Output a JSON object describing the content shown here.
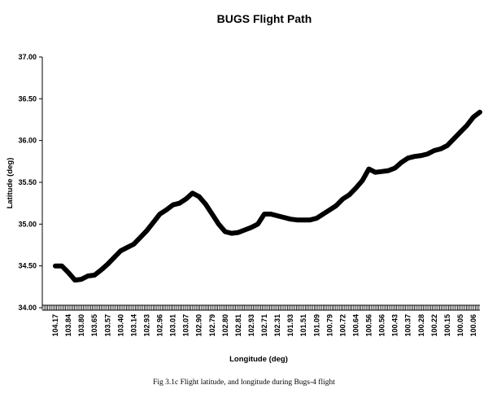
{
  "chart_data": {
    "type": "line",
    "title": "BUGS Flight Path",
    "xlabel": "Longitude (deg)",
    "ylabel": "Latitude (deg)",
    "ylim": [
      34.0,
      37.0
    ],
    "yticks": [
      "34.00",
      "34.50",
      "35.00",
      "35.50",
      "36.00",
      "36.50",
      "37.00"
    ],
    "categories": [
      "104.17",
      "103.84",
      "103.80",
      "103.65",
      "103.57",
      "103.40",
      "103.14",
      "102.93",
      "102.96",
      "103.01",
      "103.07",
      "102.90",
      "102.79",
      "102.80",
      "102.81",
      "102.93",
      "102.71",
      "102.31",
      "101.93",
      "101.51",
      "101.09",
      "100.79",
      "100.72",
      "100.64",
      "100.56",
      "100.56",
      "100.43",
      "100.37",
      "100.28",
      "100.22",
      "100.15",
      "100.05",
      "100.06"
    ],
    "series": [
      {
        "x": [
          0,
          0.5,
          1,
          1.5,
          2,
          2.5,
          3,
          3.5,
          4,
          4.5,
          5,
          5.5,
          6,
          6.5,
          7,
          7.5,
          8,
          8.5,
          9,
          9.5,
          10,
          10.5,
          11,
          11.5,
          12,
          12.5,
          13,
          13.5,
          14,
          14.5,
          15,
          15.5,
          16,
          16.5,
          17,
          17.5,
          18,
          18.5,
          19,
          19.5,
          20,
          20.5,
          21,
          21.5,
          22,
          22.5,
          23,
          23.5,
          24,
          24.5,
          25,
          25.5,
          26,
          26.5,
          27,
          27.5,
          28,
          28.5,
          29,
          29.5,
          30,
          30.5,
          31,
          31.5,
          32,
          32.5
        ],
        "values": [
          34.5,
          34.5,
          34.42,
          34.33,
          34.34,
          34.38,
          34.39,
          34.45,
          34.52,
          34.6,
          34.68,
          34.72,
          34.76,
          34.84,
          34.92,
          35.02,
          35.12,
          35.17,
          35.23,
          35.25,
          35.3,
          35.37,
          35.33,
          35.24,
          35.12,
          35.0,
          34.91,
          34.89,
          34.9,
          34.93,
          34.96,
          35.0,
          35.12,
          35.12,
          35.1,
          35.08,
          35.06,
          35.05,
          35.05,
          35.05,
          35.07,
          35.12,
          35.17,
          35.22,
          35.3,
          35.35,
          35.43,
          35.52,
          35.66,
          35.62,
          35.63,
          35.64,
          35.67,
          35.74,
          35.79,
          35.81,
          35.82,
          35.84,
          35.88,
          35.9,
          35.94,
          36.02,
          36.1,
          36.18,
          36.28,
          36.34
        ]
      }
    ]
  },
  "caption": "Fig 3.1c Flight latitude, and longitude during Bugs-4 flight"
}
